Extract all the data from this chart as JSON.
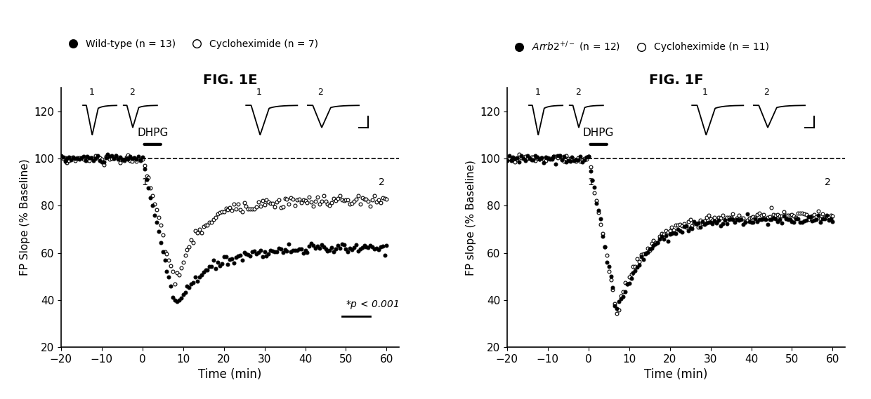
{
  "fig1e_title": "FIG. 1E",
  "fig1f_title": "FIG. 1F",
  "legend_1e_filled": "Wild-type (n = 13)",
  "legend_1e_open": "Cycloheximide (n = 7)",
  "legend_1f_open": "Cycloheximide (n = 11)",
  "ylabel_1e": "FP Slope (% Baseline)",
  "ylabel_1f": "FP slope (% Baseline)",
  "xlabel": "Time (min)",
  "ylim": [
    20,
    130
  ],
  "xlim": [
    -20,
    63
  ],
  "yticks": [
    20,
    40,
    60,
    80,
    100,
    120
  ],
  "xticks": [
    -20,
    -10,
    0,
    10,
    20,
    30,
    40,
    50,
    60
  ],
  "background_color": "#ffffff"
}
